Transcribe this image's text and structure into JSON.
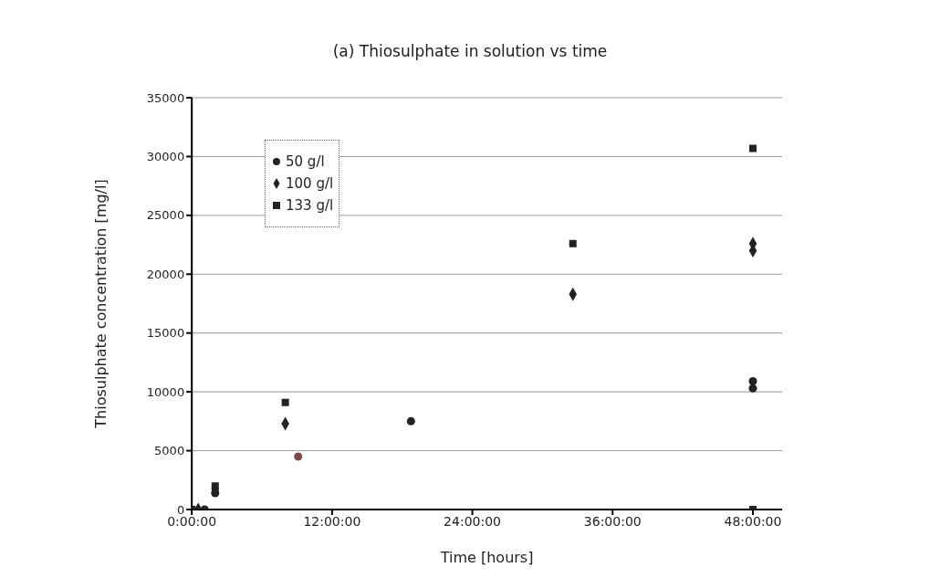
{
  "chart_data": {
    "type": "scatter",
    "title": "(a) Thiosulphate in solution vs time",
    "xlabel": "Time [hours]",
    "ylabel": "Thiosulphate concentration [mg/l]",
    "xlim": [
      0,
      50.5
    ],
    "xticks": [
      {
        "value": 0,
        "label": "0:00:00"
      },
      {
        "value": 12,
        "label": "12:00:00"
      },
      {
        "value": 24,
        "label": "24:00:00"
      },
      {
        "value": 36,
        "label": "36:00:00"
      },
      {
        "value": 48,
        "label": "48:00:00"
      }
    ],
    "ylim": [
      0,
      35000
    ],
    "yticks": [
      0,
      5000,
      10000,
      15000,
      20000,
      25000,
      30000,
      35000
    ],
    "grid": "y",
    "legend": "top left",
    "series": [
      {
        "name": "50 g/l",
        "color": "#222222",
        "marker": "circle",
        "x": [
          1.1,
          2,
          9.1,
          18.75,
          48,
          48
        ],
        "values": [
          0,
          1400,
          4500,
          7500,
          10900,
          10300
        ],
        "colors": [
          "#222222",
          "#222222",
          "#7a4a4a",
          "#222222",
          "#222222",
          "#222222"
        ]
      },
      {
        "name": "100 g/l",
        "color": "#222222",
        "marker": "diamond",
        "x": [
          0.55,
          2,
          8,
          32.6,
          48,
          48
        ],
        "values": [
          0,
          1700,
          7300,
          18300,
          22600,
          22000
        ]
      },
      {
        "name": "133 g/l",
        "color": "#222222",
        "marker": "square",
        "x": [
          0,
          2,
          8,
          32.6,
          48,
          48
        ],
        "values": [
          0,
          2000,
          9100,
          22600,
          30700,
          0
        ]
      }
    ]
  }
}
